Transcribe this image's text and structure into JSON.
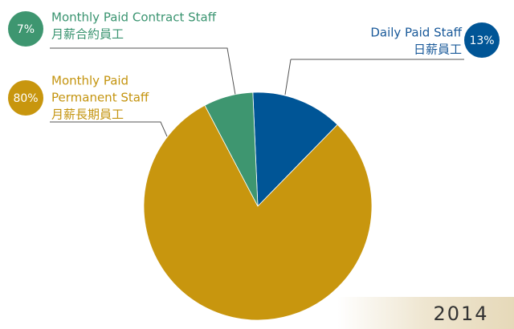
{
  "chart_data": {
    "type": "pie",
    "year": "2014",
    "categories": [
      {
        "en": [
          "Daily Paid Staff"
        ],
        "zh": "日薪員工"
      },
      {
        "en": [
          "Monthly Paid",
          "Permanent Staff"
        ],
        "zh": "月薪長期員工"
      },
      {
        "en": [
          "Monthly Paid Contract Staff"
        ],
        "zh": "月薪合約員工"
      }
    ],
    "values": [
      13,
      80,
      7
    ],
    "value_labels": [
      "13%",
      "80%",
      "7%"
    ],
    "colors": [
      "#005596",
      "#c8960e",
      "#3e9670"
    ]
  }
}
